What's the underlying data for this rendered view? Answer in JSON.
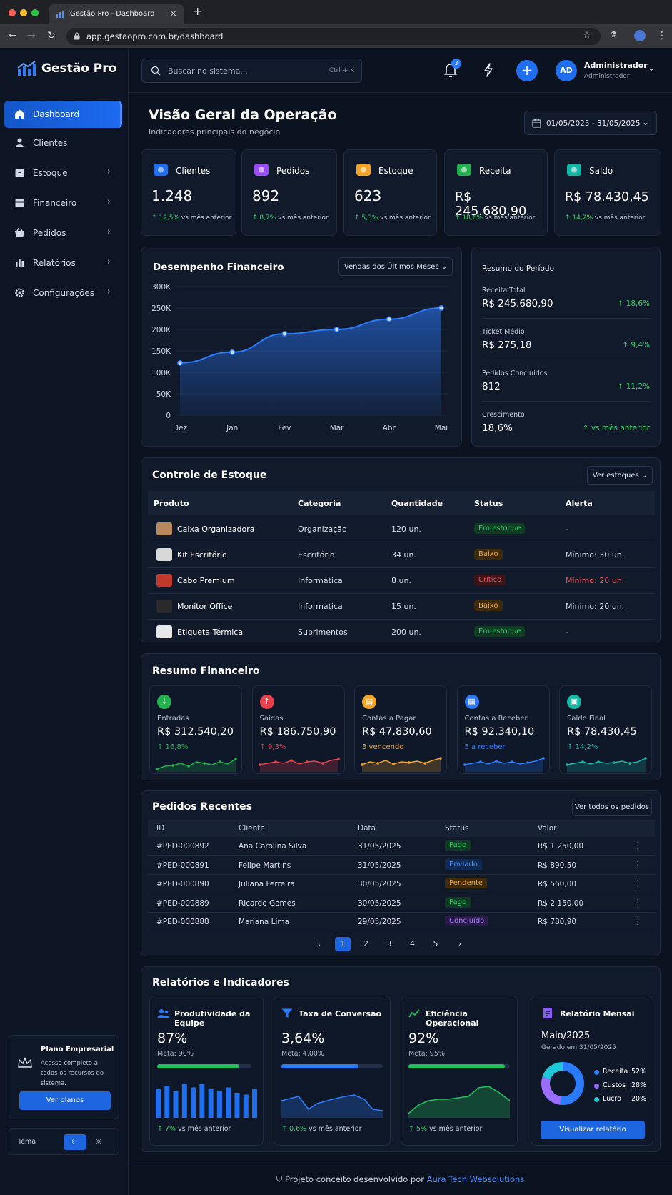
{
  "browser": {
    "tab_title": "Gestão Pro - Dashboard",
    "url": "app.gestaopro.com.br/dashboard"
  },
  "sidebar": {
    "brand": "Gestão Pro",
    "items": [
      {
        "label": "Dashboard"
      },
      {
        "label": "Clientes"
      },
      {
        "label": "Estoque"
      },
      {
        "label": "Financeiro"
      },
      {
        "label": "Pedidos"
      },
      {
        "label": "Relatórios"
      },
      {
        "label": "Configurações"
      }
    ],
    "plan": {
      "title": "Plano Empresarial",
      "desc": "Acesso completo a todos os recursos do sistema.",
      "button": "Ver planos"
    },
    "theme_label": "Tema"
  },
  "header": {
    "search_placeholder": "Buscar no sistema...",
    "shortcut": "Ctrl + K",
    "notif_count": "3",
    "avatar_initials": "AD",
    "user_name": "Administrador",
    "user_role": "Administrador"
  },
  "page": {
    "title": "Visão Geral da Operação",
    "subtitle": "Indicadores principais do negócio",
    "date_range": "01/05/2025 - 31/05/2025"
  },
  "kpis": [
    {
      "label": "Clientes",
      "value": "1.248",
      "change": "↑ 12,5%",
      "suffix": "vs mês anterior",
      "color": "#1f6ff0"
    },
    {
      "label": "Pedidos",
      "value": "892",
      "change": "↑ 8,7%",
      "suffix": "vs mês anterior",
      "color": "#9b4dff"
    },
    {
      "label": "Estoque",
      "value": "623",
      "change": "↑ 5,3%",
      "suffix": "vs mês anterior",
      "color": "#f5a524"
    },
    {
      "label": "Receita",
      "value": "R$ 245.680,90",
      "change": "↑ 18,6%",
      "suffix": "vs mês anterior",
      "color": "#22b14c"
    },
    {
      "label": "Saldo",
      "value": "R$ 78.430,45",
      "change": "↑ 14,2%",
      "suffix": "vs mês anterior",
      "color": "#14b8a6"
    }
  ],
  "performance": {
    "title": "Desempenho Financeiro",
    "dropdown": "Vendas dos Últimos Meses"
  },
  "chart_data": {
    "type": "area",
    "x": [
      "Dez",
      "Jan",
      "Fev",
      "Mar",
      "Abr",
      "Mai"
    ],
    "series": [
      {
        "values": [
          122000,
          147000,
          190000,
          200000,
          224000,
          250000
        ]
      }
    ],
    "yticks": [
      "300K",
      "250K",
      "200K",
      "150K",
      "100K",
      "50K",
      "0"
    ],
    "ylim": [
      0,
      300000
    ],
    "grid": true,
    "color": "#2b7bff"
  },
  "summary": {
    "title": "Resumo do Período",
    "items": [
      {
        "label": "Receita Total",
        "value": "R$ 245.680,90",
        "change": "↑ 18,6%"
      },
      {
        "label": "Ticket Médio",
        "value": "R$ 275,18",
        "change": "↑ 9,4%"
      },
      {
        "label": "Pedidos Concluídos",
        "value": "812",
        "change": "↑ 11,2%"
      },
      {
        "label": "Crescimento",
        "value": "18,6%",
        "change": "↑ vs mês anterior"
      }
    ]
  },
  "stock": {
    "title": "Controle de Estoque",
    "button": "Ver estoques",
    "headers": [
      "Produto",
      "Categoria",
      "Quantidade",
      "Status",
      "Alerta"
    ],
    "rows": [
      {
        "product": "Caixa Organizadora",
        "category": "Organização",
        "qty": "120 un.",
        "status": "Em estoque",
        "alert": "-",
        "kind": "green"
      },
      {
        "product": "Kit Escritório",
        "category": "Escritório",
        "qty": "34 un.",
        "status": "Baixo",
        "alert": "Mínimo: 30 un.",
        "kind": "orange"
      },
      {
        "product": "Cabo Premium",
        "category": "Informática",
        "qty": "8 un.",
        "status": "Crítico",
        "alert": "Mínimo: 20 un.",
        "kind": "red"
      },
      {
        "product": "Monitor Office",
        "category": "Informática",
        "qty": "15 un.",
        "status": "Baixo",
        "alert": "Mínimo: 20 un.",
        "kind": "orange"
      },
      {
        "product": "Etiqueta Térmica",
        "category": "Suprimentos",
        "qty": "200 un.",
        "status": "Em estoque",
        "alert": "-",
        "kind": "green"
      }
    ]
  },
  "finance": {
    "title": "Resumo Financeiro",
    "cards": [
      {
        "label": "Entradas",
        "value": "R$ 312.540,20",
        "sub": "↑ 16,8%",
        "color": "#22b14c",
        "icon": "↓"
      },
      {
        "label": "Saídas",
        "value": "R$ 186.750,90",
        "sub": "↑ 9,3%",
        "color": "#e8414e",
        "icon": "↑"
      },
      {
        "label": "Contas a Pagar",
        "value": "R$ 47.830,60",
        "sub": "3 vencendo",
        "color": "#f5a524",
        "icon": "▤"
      },
      {
        "label": "Contas a Receber",
        "value": "R$ 92.340,10",
        "sub": "5 a receber",
        "color": "#2b7bff",
        "icon": "▦"
      },
      {
        "label": "Saldo Final",
        "value": "R$ 78.430,45",
        "sub": "↑ 14,2%",
        "color": "#14b8a6",
        "icon": "▣"
      }
    ]
  },
  "orders": {
    "title": "Pedidos Recentes",
    "button": "Ver todos os pedidos",
    "headers": [
      "ID",
      "Cliente",
      "Data",
      "Status",
      "Valor"
    ],
    "rows": [
      {
        "id": "#PED-000892",
        "client": "Ana Carolina Silva",
        "date": "31/05/2025",
        "status": "Pago",
        "value": "R$ 1.250,00",
        "kind": "green"
      },
      {
        "id": "#PED-000891",
        "client": "Felipe Martins",
        "date": "31/05/2025",
        "status": "Enviado",
        "value": "R$ 890,50",
        "kind": "blue"
      },
      {
        "id": "#PED-000890",
        "client": "Juliana Ferreira",
        "date": "30/05/2025",
        "status": "Pendente",
        "value": "R$ 560,00",
        "kind": "orange"
      },
      {
        "id": "#PED-000889",
        "client": "Ricardo Gomes",
        "date": "30/05/2025",
        "status": "Pago",
        "value": "R$ 2.150,00",
        "kind": "green"
      },
      {
        "id": "#PED-000888",
        "client": "Mariana Lima",
        "date": "29/05/2025",
        "status": "Concluído",
        "value": "R$ 780,90",
        "kind": "purple"
      }
    ],
    "pages": [
      "1",
      "2",
      "3",
      "4",
      "5"
    ],
    "current_page": "1"
  },
  "reports": {
    "title": "Relatórios e Indicadores",
    "productivity": {
      "title": "Produtividade da Equipe",
      "value": "87%",
      "meta": "Meta: 90%",
      "progress": 0.87,
      "change": "↑ 7%",
      "suffix": "vs mês anterior",
      "bars": [
        0.8,
        0.9,
        0.75,
        0.95,
        0.85,
        0.95,
        0.8,
        0.75,
        0.85,
        0.7,
        0.65,
        0.8
      ]
    },
    "conversion": {
      "title": "Taxa de Conversão",
      "value": "3,64%",
      "meta": "Meta: 4,00%",
      "progress": 0.76,
      "change": "↑ 0,6%",
      "suffix": "vs mês anterior"
    },
    "efficiency": {
      "title": "Eficiência Operacional",
      "value": "92%",
      "meta": "Meta: 95%",
      "progress": 0.95,
      "change": "↑ 5%",
      "suffix": "vs mês anterior"
    },
    "monthly": {
      "title": "Relatório Mensal",
      "month": "Maio/2025",
      "generated": "Gerado em 31/05/2025",
      "button": "Visualizar relatório",
      "legend": [
        {
          "label": "Receita",
          "value": "52%",
          "color": "#2b7bff",
          "share": 0.52
        },
        {
          "label": "Custos",
          "value": "28%",
          "color": "#9b6dff",
          "share": 0.28
        },
        {
          "label": "Lucro",
          "value": "20%",
          "color": "#1ec8d8",
          "share": 0.2
        }
      ]
    }
  },
  "footer": {
    "text": "Projeto conceito desenvolvido por",
    "link": "Aura Tech Websolutions"
  }
}
